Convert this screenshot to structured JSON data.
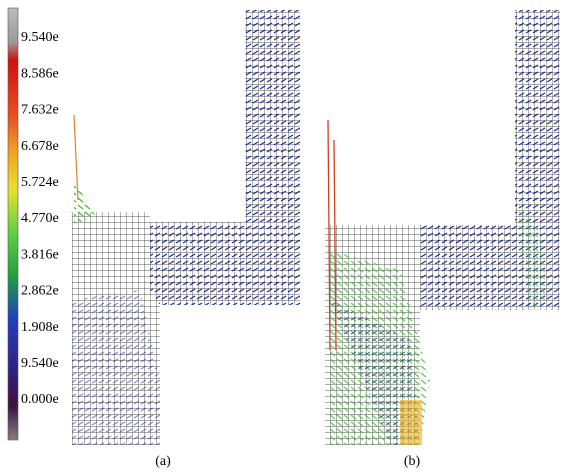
{
  "colorbar": {
    "labels": [
      "9.540e",
      "8.586e",
      "7.632e",
      "6.678e",
      "5.724e",
      "4.770e",
      "3.816e",
      "2.862e",
      "1.908e",
      "9.540e",
      "0.000e"
    ]
  },
  "captions": [
    "(a)",
    "(b)"
  ]
}
